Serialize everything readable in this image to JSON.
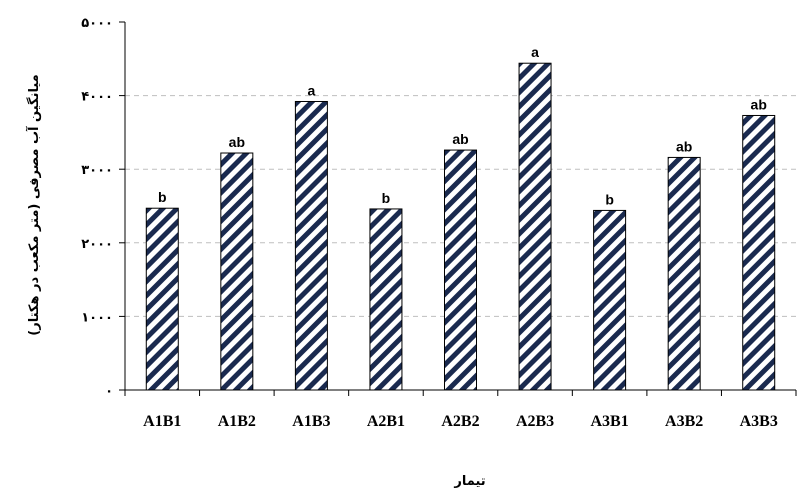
{
  "chart_data": {
    "type": "bar",
    "categories": [
      "A1B1",
      "A1B2",
      "A1B3",
      "A2B1",
      "A2B2",
      "A2B3",
      "A3B1",
      "A3B2",
      "A3B3"
    ],
    "values": [
      2470,
      3220,
      3920,
      2460,
      3260,
      4440,
      2440,
      3160,
      3730
    ],
    "data_labels": [
      "b",
      "ab",
      "a",
      "b",
      "ab",
      "a",
      "b",
      "ab",
      "ab"
    ],
    "ytick_labels": [
      "۰",
      "۱۰۰۰",
      "۲۰۰۰",
      "۳۰۰۰",
      "۴۰۰۰",
      "۵۰۰۰"
    ],
    "ytick_values": [
      0,
      1000,
      2000,
      3000,
      4000,
      5000
    ],
    "ylim": [
      0,
      5000
    ],
    "xlabel": "تیمار",
    "ylabel": "میانگین آب مصرفی (متر مکعب در هکتار)",
    "grid": "horizontal-dashed",
    "legend": "none",
    "colors": {
      "bar_stripe": "#1a2a4f",
      "bar_bg": "#ffffff",
      "grid": "#bfbfbf",
      "axis": "#000000"
    }
  }
}
